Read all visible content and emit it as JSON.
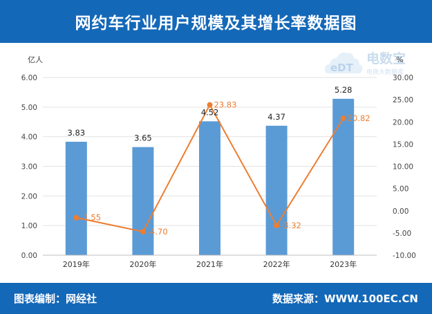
{
  "header": {
    "title": "网约车行业用户规模及其增长率数据图"
  },
  "footer": {
    "left": "图表编制：网经社",
    "right": "数据来源：WWW.100EC.CN"
  },
  "watermark": {
    "logo_text": "eDT",
    "brand": "电数宝",
    "tagline": "电商大数据库"
  },
  "colors": {
    "bar": "#5b9bd5",
    "line": "#ed7d31",
    "banner": "#1468b8"
  },
  "chart_data": {
    "type": "bar",
    "categories": [
      "2019年",
      "2020年",
      "2021年",
      "2022年",
      "2023年"
    ],
    "series": [
      {
        "type": "bar",
        "axis": "left",
        "values": [
          3.83,
          3.65,
          4.52,
          4.37,
          5.28
        ],
        "labels": [
          "3.83",
          "3.65",
          "4.52",
          "4.37",
          "5.28"
        ]
      },
      {
        "type": "line",
        "axis": "right",
        "values": [
          -1.55,
          -4.7,
          23.83,
          -3.32,
          20.82
        ],
        "labels": [
          "-1.55",
          "-4.70",
          "23.83",
          "-3.32",
          "20.82"
        ]
      }
    ],
    "y_left": {
      "unit": "亿人",
      "min": 0,
      "max": 6,
      "step": 1,
      "ticks": [
        "0.00",
        "1.00",
        "2.00",
        "3.00",
        "4.00",
        "5.00",
        "6.00"
      ]
    },
    "y_right": {
      "unit": "%",
      "min": -10,
      "max": 30,
      "step": 5,
      "ticks": [
        "-10.00",
        "-5.00",
        "0.00",
        "5.00",
        "10.00",
        "15.00",
        "20.00",
        "25.00",
        "30.00"
      ]
    },
    "grid": true,
    "legend": "none"
  }
}
